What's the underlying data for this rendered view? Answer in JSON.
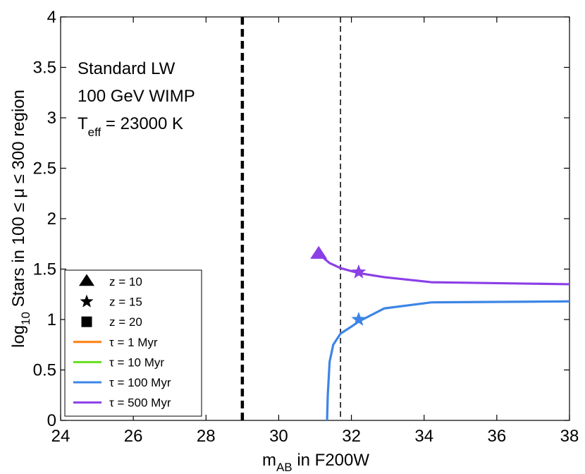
{
  "chart_data": {
    "type": "line",
    "xlabel_main": "m",
    "xlabel_sub": "AB",
    "xlabel_rest": " in F200W",
    "ylabel_pre": "log",
    "ylabel_sub": "10",
    "ylabel_rest": " Stars in 100 ≤ μ ≤ 300 region",
    "xlim": [
      24,
      38
    ],
    "ylim": [
      0,
      4
    ],
    "xticks": [
      24,
      26,
      28,
      30,
      32,
      34,
      36,
      38
    ],
    "yticks": [
      0,
      0.5,
      1,
      1.5,
      2,
      2.5,
      3,
      3.5,
      4
    ],
    "xtick_labels": [
      "24",
      "26",
      "28",
      "30",
      "32",
      "34",
      "36",
      "38"
    ],
    "ytick_labels": [
      "0",
      "0.5",
      "1",
      "1.5",
      "2",
      "2.5",
      "3",
      "3.5",
      "4"
    ],
    "annotations": {
      "line1": "Standard LW",
      "line2": "100 GeV WIMP",
      "line3_pre": "T",
      "line3_sub": "eff",
      "line3_rest": " = 23000 K"
    },
    "vlines": [
      {
        "name": "thick-dashed",
        "x": 29.0
      },
      {
        "name": "thin-dashed",
        "x": 31.7
      }
    ],
    "series": [
      {
        "name": "τ = 1 Myr",
        "color": "#ff7f0e",
        "x": [],
        "y": []
      },
      {
        "name": "τ = 10 Myr",
        "color": "#66dd22",
        "x": [],
        "y": []
      },
      {
        "name": "τ = 100 Myr",
        "color": "#3d85e6",
        "x": [
          31.33,
          31.35,
          31.4,
          31.5,
          31.7,
          32.0,
          32.2,
          32.9,
          34.2,
          38.0
        ],
        "y": [
          0.0,
          0.25,
          0.58,
          0.75,
          0.86,
          0.93,
          0.98,
          1.11,
          1.17,
          1.18
        ]
      },
      {
        "name": "τ = 500 Myr",
        "color": "#8b3fe6",
        "x": [
          31.1,
          31.4,
          31.7,
          32.2,
          32.9,
          34.2,
          38.0
        ],
        "y": [
          1.65,
          1.56,
          1.51,
          1.46,
          1.42,
          1.37,
          1.35
        ]
      }
    ],
    "markers": [
      {
        "series": "τ = 500 Myr",
        "shape": "triangle",
        "x": 31.1,
        "y": 1.65,
        "color": "#8b3fe6"
      },
      {
        "series": "τ = 500 Myr",
        "shape": "star",
        "x": 32.2,
        "y": 1.47,
        "color": "#8b3fe6"
      },
      {
        "series": "τ = 100 Myr",
        "shape": "star",
        "x": 32.2,
        "y": 1.0,
        "color": "#3d85e6"
      }
    ],
    "legend": {
      "placement": "lower-left",
      "entries": [
        {
          "label": "z = 10",
          "kind": "marker",
          "shape": "triangle"
        },
        {
          "label": "z = 15",
          "kind": "marker",
          "shape": "star"
        },
        {
          "label": "z = 20",
          "kind": "marker",
          "shape": "square"
        },
        {
          "label": "τ = 1 Myr",
          "kind": "line",
          "color": "#ff7f0e"
        },
        {
          "label": "τ = 10 Myr",
          "kind": "line",
          "color": "#66dd22"
        },
        {
          "label": "τ = 100 Myr",
          "kind": "line",
          "color": "#3d85e6"
        },
        {
          "label": "τ = 500 Myr",
          "kind": "line",
          "color": "#8b3fe6"
        }
      ]
    }
  }
}
